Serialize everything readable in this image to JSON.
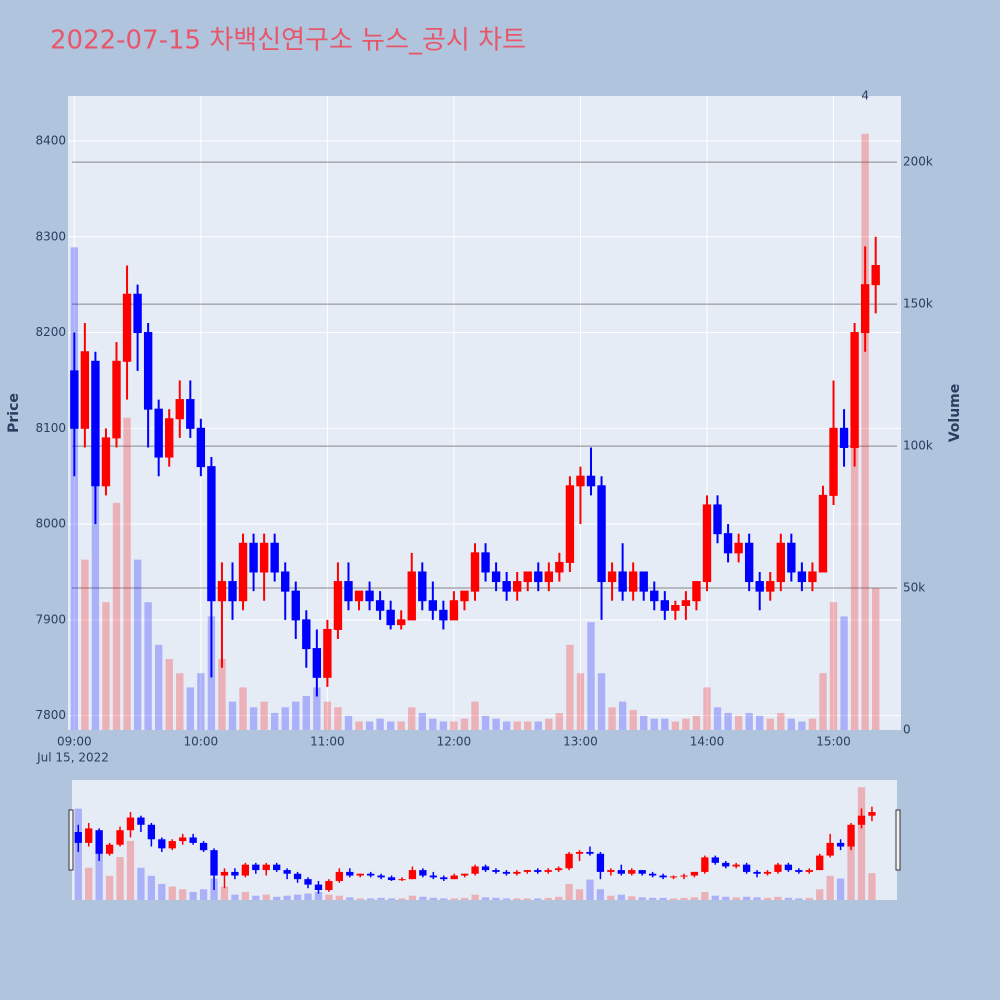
{
  "chart_data": {
    "type": "candlestick",
    "title": "2022-07-15 차백신연구소 뉴스_공시 차트",
    "y_label": "Price",
    "y2_label": "Volume",
    "x_date_label": "Jul 15, 2022",
    "increasing_color": "#ff0000",
    "decreasing_color": "#0000ff",
    "xlim": [
      "08:57",
      "15:32"
    ],
    "xticks": [
      "09:00",
      "10:00",
      "11:00",
      "12:00",
      "13:00",
      "14:00",
      "15:00"
    ],
    "ylim": [
      7785,
      8447
    ],
    "yticks": [
      7800,
      7900,
      8000,
      8100,
      8200,
      8300,
      8400
    ],
    "y2lim": [
      0,
      223300
    ],
    "y2ticks": [
      {
        "value": 0,
        "label": "0"
      },
      {
        "value": 50000,
        "label": "50k"
      },
      {
        "value": 100000,
        "label": "100k"
      },
      {
        "value": 150000,
        "label": "150k"
      },
      {
        "value": 200000,
        "label": "200k"
      }
    ],
    "annotations": [
      {
        "x": "15:15",
        "text": "4"
      }
    ],
    "x": [
      "09:00",
      "09:05",
      "09:10",
      "09:15",
      "09:20",
      "09:25",
      "09:30",
      "09:35",
      "09:40",
      "09:45",
      "09:50",
      "09:55",
      "10:00",
      "10:05",
      "10:10",
      "10:15",
      "10:20",
      "10:25",
      "10:30",
      "10:35",
      "10:40",
      "10:45",
      "10:50",
      "10:55",
      "11:00",
      "11:05",
      "11:10",
      "11:15",
      "11:20",
      "11:25",
      "11:30",
      "11:35",
      "11:40",
      "11:45",
      "11:50",
      "11:55",
      "12:00",
      "12:05",
      "12:10",
      "12:15",
      "12:20",
      "12:25",
      "12:30",
      "12:35",
      "12:40",
      "12:45",
      "12:50",
      "12:55",
      "13:00",
      "13:05",
      "13:10",
      "13:15",
      "13:20",
      "13:25",
      "13:30",
      "13:35",
      "13:40",
      "13:45",
      "13:50",
      "13:55",
      "14:00",
      "14:05",
      "14:10",
      "14:15",
      "14:20",
      "14:25",
      "14:30",
      "14:35",
      "14:40",
      "14:45",
      "14:50",
      "14:55",
      "15:00",
      "15:05",
      "15:10",
      "15:15",
      "15:20"
    ],
    "open": [
      8160,
      8100,
      8170,
      8040,
      8090,
      8170,
      8240,
      8200,
      8120,
      8070,
      8110,
      8130,
      8100,
      8060,
      7920,
      7940,
      7920,
      7980,
      7950,
      7980,
      7950,
      7930,
      7900,
      7870,
      7840,
      7890,
      7940,
      7920,
      7930,
      7920,
      7910,
      7895,
      7900,
      7950,
      7920,
      7910,
      7900,
      7920,
      7930,
      7970,
      7950,
      7940,
      7930,
      7940,
      7950,
      7940,
      7950,
      7960,
      8040,
      8050,
      8040,
      7940,
      7950,
      7930,
      7950,
      7930,
      7920,
      7910,
      7915,
      7920,
      7940,
      8020,
      7990,
      7970,
      7980,
      7940,
      7930,
      7940,
      7980,
      7950,
      7940,
      7950,
      8030,
      8100,
      8080,
      8200,
      8250
    ],
    "high": [
      8200,
      8210,
      8180,
      8100,
      8190,
      8270,
      8250,
      8210,
      8130,
      8120,
      8150,
      8150,
      8110,
      8070,
      7960,
      7960,
      7990,
      7990,
      7990,
      7990,
      7960,
      7940,
      7910,
      7890,
      7900,
      7960,
      7960,
      7930,
      7940,
      7930,
      7920,
      7910,
      7970,
      7960,
      7940,
      7920,
      7930,
      7930,
      7980,
      7980,
      7960,
      7950,
      7950,
      7950,
      7960,
      7960,
      7970,
      8050,
      8060,
      8080,
      8050,
      7960,
      7980,
      7960,
      7950,
      7940,
      7930,
      7920,
      7930,
      7940,
      8030,
      8030,
      8000,
      7990,
      7990,
      7950,
      7950,
      7990,
      7990,
      7960,
      7960,
      8040,
      8150,
      8120,
      8210,
      8290,
      8300
    ],
    "low": [
      8050,
      8080,
      8000,
      8030,
      8080,
      8130,
      8160,
      8080,
      8050,
      8060,
      8090,
      8090,
      8050,
      7840,
      7850,
      7900,
      7910,
      7930,
      7920,
      7940,
      7900,
      7880,
      7850,
      7820,
      7830,
      7880,
      7910,
      7910,
      7910,
      7900,
      7890,
      7890,
      7900,
      7910,
      7900,
      7890,
      7900,
      7910,
      7920,
      7940,
      7930,
      7920,
      7920,
      7930,
      7930,
      7930,
      7940,
      7950,
      8000,
      8030,
      7900,
      7920,
      7920,
      7920,
      7920,
      7910,
      7900,
      7900,
      7900,
      7910,
      7930,
      7980,
      7960,
      7960,
      7930,
      7910,
      7920,
      7930,
      7940,
      7930,
      7930,
      7950,
      8020,
      8060,
      8060,
      8180,
      8220
    ],
    "close": [
      8100,
      8180,
      8040,
      8090,
      8170,
      8240,
      8200,
      8120,
      8070,
      8110,
      8130,
      8100,
      8060,
      7920,
      7940,
      7920,
      7980,
      7950,
      7980,
      7950,
      7930,
      7900,
      7870,
      7840,
      7890,
      7940,
      7920,
      7930,
      7920,
      7910,
      7895,
      7900,
      7950,
      7920,
      7910,
      7900,
      7920,
      7930,
      7970,
      7950,
      7940,
      7930,
      7940,
      7950,
      7940,
      7950,
      7960,
      8040,
      8050,
      8040,
      7940,
      7950,
      7930,
      7950,
      7930,
      7920,
      7910,
      7915,
      7920,
      7940,
      8020,
      7990,
      7970,
      7980,
      7940,
      7930,
      7940,
      7980,
      7950,
      7940,
      7950,
      8030,
      8100,
      8080,
      8200,
      8250,
      8270
    ],
    "volume": [
      170000,
      60000,
      90000,
      45000,
      80000,
      110000,
      60000,
      45000,
      30000,
      25000,
      20000,
      15000,
      20000,
      40000,
      25000,
      10000,
      15000,
      8000,
      10000,
      6000,
      8000,
      10000,
      12000,
      15000,
      10000,
      8000,
      5000,
      3000,
      3000,
      4000,
      3000,
      3000,
      8000,
      6000,
      4000,
      3000,
      3000,
      4000,
      10000,
      5000,
      4000,
      3000,
      3000,
      3000,
      3000,
      4000,
      6000,
      30000,
      20000,
      38000,
      20000,
      8000,
      10000,
      7000,
      5000,
      4000,
      4000,
      3000,
      4000,
      5000,
      15000,
      8000,
      6000,
      5000,
      6000,
      5000,
      4000,
      6000,
      4000,
      3000,
      4000,
      20000,
      45000,
      40000,
      100000,
      210000,
      50000
    ]
  }
}
